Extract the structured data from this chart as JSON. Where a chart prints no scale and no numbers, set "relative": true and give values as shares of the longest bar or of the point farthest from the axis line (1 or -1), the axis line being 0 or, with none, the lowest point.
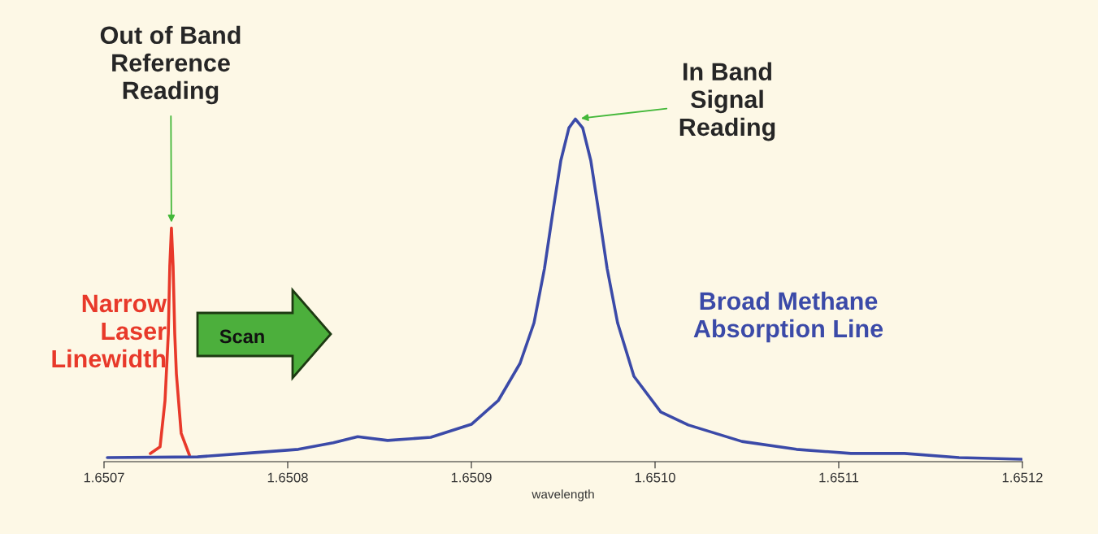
{
  "chart_data": {
    "type": "line",
    "relative": true,
    "xlabel": "wavelength",
    "xlim": [
      1.6507,
      1.6512
    ],
    "xticks": [
      1.6507,
      1.6508,
      1.6509,
      {
        "value": 1.651,
        "label": "1.6510"
      },
      1.6511,
      1.6512
    ],
    "series": [
      {
        "name": "Narrow Laser Linewidth",
        "color": "#e8392a",
        "x": [
          1.6507252,
          1.6507305,
          1.6507332,
          1.650735,
          1.6507358,
          1.6507367,
          1.6507376,
          1.6507385,
          1.6507394,
          1.650742,
          1.6507465
        ],
        "values": [
          0.024,
          0.043,
          0.178,
          0.374,
          0.571,
          0.682,
          0.571,
          0.374,
          0.256,
          0.083,
          0.019
        ]
      },
      {
        "name": "Broad Methane Absorption Line",
        "color": "#3b4aa8",
        "x": [
          1.6507018,
          1.6507509,
          1.6507761,
          1.6508058,
          1.6508248,
          1.6508381,
          1.6508544,
          1.6508779,
          1.6509,
          1.6509146,
          1.6509265,
          1.6509341,
          1.6509398,
          1.6509442,
          1.6509487,
          1.6509531,
          1.6509566,
          1.6509606,
          1.650965,
          1.6509695,
          1.6509739,
          1.6509796,
          1.6509885,
          1.6510031,
          1.6510181,
          1.6510473,
          1.651077,
          1.6511066,
          1.6511358,
          1.6511655,
          1.6511996
        ],
        "values": [
          0.012,
          0.014,
          0.024,
          0.036,
          0.055,
          0.073,
          0.062,
          0.071,
          0.109,
          0.178,
          0.287,
          0.405,
          0.564,
          0.723,
          0.879,
          0.974,
          1.0,
          0.974,
          0.879,
          0.723,
          0.564,
          0.405,
          0.249,
          0.145,
          0.107,
          0.059,
          0.036,
          0.024,
          0.024,
          0.012,
          0.007
        ]
      }
    ],
    "annotations": [
      {
        "text": "Out of Band\nReference\nReading",
        "x": 1.6507367,
        "y": 0.682
      },
      {
        "text": "In Band\nSignal\nReading",
        "x": 1.6509566,
        "y": 1.0
      },
      "Scan"
    ]
  }
}
